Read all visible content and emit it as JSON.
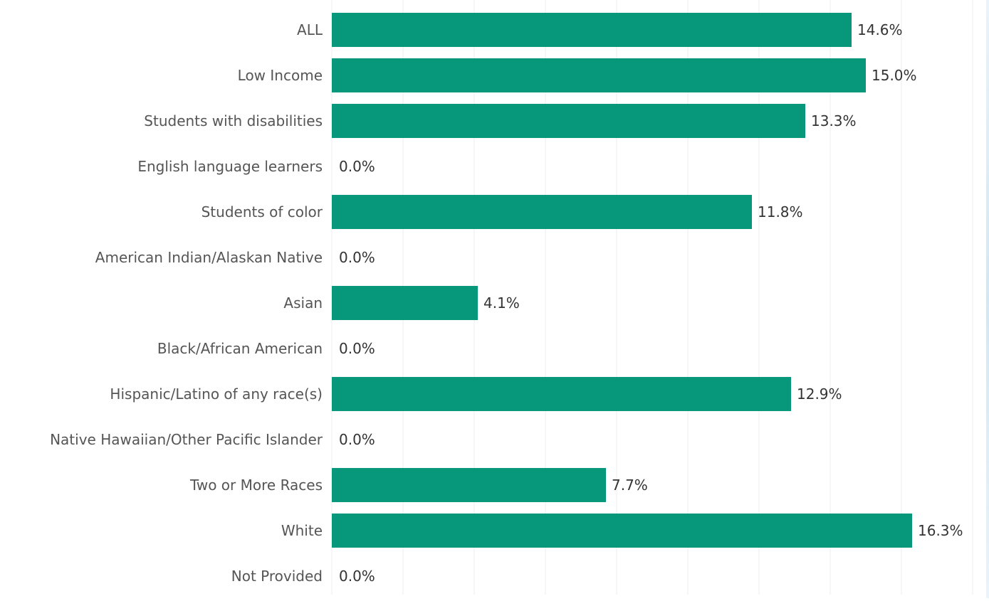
{
  "chart_data": {
    "type": "bar",
    "orientation": "horizontal",
    "categories": [
      "ALL",
      "Low Income",
      "Students with disabilities",
      "English language learners",
      "Students of color",
      "American Indian/Alaskan Native",
      "Asian",
      "Black/African American",
      "Hispanic/Latino of any race(s)",
      "Native Hawaiian/Other Pacific Islander",
      "Two or More Races",
      "White",
      "Not Provided"
    ],
    "values": [
      14.6,
      15.0,
      13.3,
      0.0,
      11.8,
      0.0,
      4.1,
      0.0,
      12.9,
      0.0,
      7.7,
      16.3,
      0.0
    ],
    "value_labels": [
      "14.6%",
      "15.0%",
      "13.3%",
      "0.0%",
      "11.8%",
      "0.0%",
      "4.1%",
      "0.0%",
      "12.9%",
      "0.0%",
      "7.7%",
      "16.3%",
      "0.0%"
    ],
    "xlim": [
      0,
      18
    ],
    "grid": true,
    "bar_color": "#07987c",
    "grid_color": "#eeeeee"
  }
}
